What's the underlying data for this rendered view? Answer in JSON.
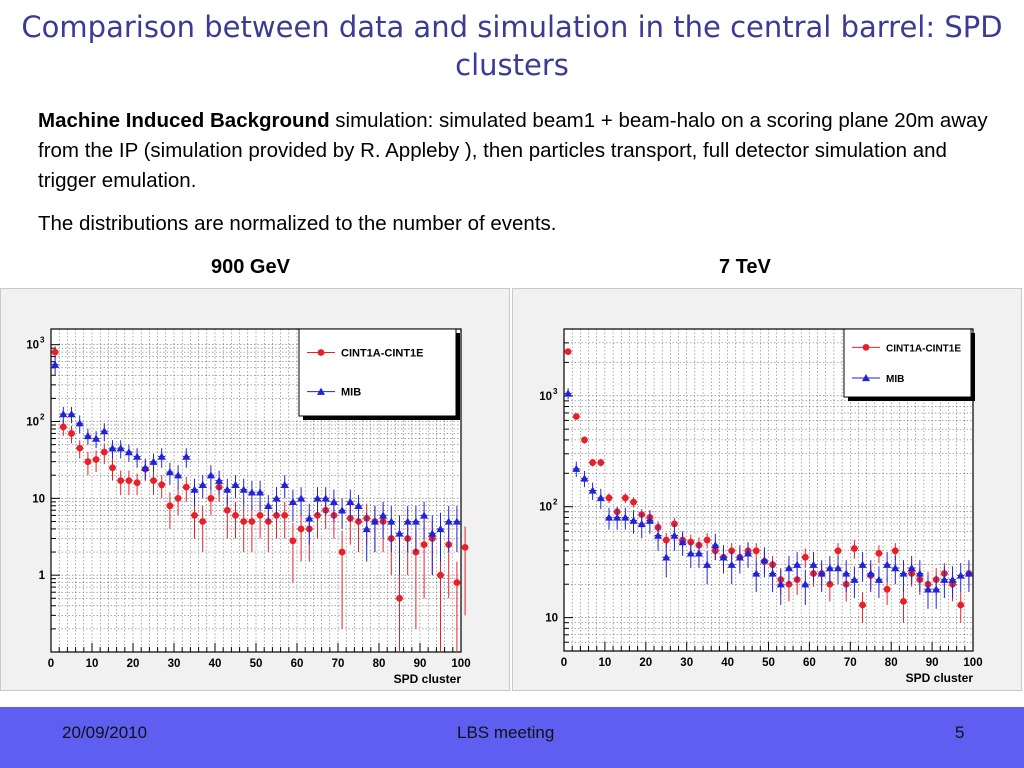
{
  "slide": {
    "title": "Comparison between data and simulation in the central barrel: SPD clusters",
    "para1_lead": "Machine Induced Background",
    "para1_rest": " simulation: simulated beam1 + beam-halo on a scoring plane 20m away from the IP (simulation provided by R. Appleby ), then particles transport, full detector simulation and trigger emulation.",
    "para2": "The distributions are normalized to the number of events."
  },
  "footer": {
    "date": "20/09/2010",
    "meeting": "LBS meeting",
    "page": "5"
  },
  "colors": {
    "data": "#e8202a",
    "mib": "#2222d6",
    "footer": "#5e5ef0",
    "title": "#3b3b96"
  },
  "chart_data": [
    {
      "type": "scatter",
      "panel_label": "900 GeV",
      "xlabel": "SPD cluster",
      "ylabel": "",
      "xlim": [
        0,
        100
      ],
      "ylim": [
        0.1,
        1600
      ],
      "yscale": "log",
      "xticks": [
        0,
        10,
        20,
        30,
        40,
        50,
        60,
        70,
        80,
        90,
        100
      ],
      "yticks": [
        {
          "v": 1,
          "label": "1"
        },
        {
          "v": 10,
          "label": "10"
        },
        {
          "v": 100,
          "label": "10",
          "sup": "2"
        },
        {
          "v": 1000,
          "label": "10",
          "sup": "3"
        }
      ],
      "grid": true,
      "legend_position": "top-right",
      "series": [
        {
          "name": "CINT1A-CINT1E",
          "marker": "circle",
          "points": [
            [
              1,
              800,
              150
            ],
            [
              3,
              85,
              20
            ],
            [
              5,
              70,
              18
            ],
            [
              7,
              45,
              12
            ],
            [
              9,
              30,
              10
            ],
            [
              11,
              32,
              10
            ],
            [
              13,
              40,
              12
            ],
            [
              15,
              25,
              8
            ],
            [
              17,
              17,
              6
            ],
            [
              19,
              17,
              6
            ],
            [
              21,
              16,
              5
            ],
            [
              23,
              24,
              7
            ],
            [
              25,
              17,
              6
            ],
            [
              27,
              15,
              5
            ],
            [
              29,
              8,
              4
            ],
            [
              31,
              10,
              4
            ],
            [
              33,
              14,
              5
            ],
            [
              35,
              6,
              3
            ],
            [
              37,
              5,
              3
            ],
            [
              39,
              10,
              4
            ],
            [
              41,
              14,
              5
            ],
            [
              43,
              7,
              4
            ],
            [
              45,
              6,
              3
            ],
            [
              47,
              5,
              3
            ],
            [
              49,
              5,
              3
            ],
            [
              51,
              6,
              3
            ],
            [
              53,
              5,
              3
            ],
            [
              55,
              6,
              3
            ],
            [
              57,
              6,
              3
            ],
            [
              59,
              2.8,
              2
            ],
            [
              61,
              4,
              2.5
            ],
            [
              63,
              4,
              2.5
            ],
            [
              65,
              6,
              3
            ],
            [
              67,
              7,
              3
            ],
            [
              69,
              6,
              3
            ],
            [
              71,
              2,
              1.8
            ],
            [
              73,
              5.5,
              3
            ],
            [
              75,
              5,
              3
            ],
            [
              77,
              5.5,
              3
            ],
            [
              79,
              5,
              3
            ],
            [
              81,
              5,
              3
            ],
            [
              83,
              3,
              2
            ],
            [
              85,
              0.5,
              0.5
            ],
            [
              87,
              3,
              2
            ],
            [
              89,
              2,
              1.8
            ],
            [
              91,
              2.5,
              2
            ],
            [
              93,
              3,
              2
            ],
            [
              95,
              1,
              1
            ],
            [
              97,
              2.5,
              2
            ],
            [
              99,
              0.8,
              0.7
            ],
            [
              101,
              2.3,
              2
            ]
          ]
        },
        {
          "name": "MIB",
          "marker": "triangle",
          "points": [
            [
              1,
              550,
              150
            ],
            [
              3,
              125,
              30
            ],
            [
              5,
              125,
              30
            ],
            [
              7,
              95,
              25
            ],
            [
              9,
              65,
              15
            ],
            [
              11,
              60,
              15
            ],
            [
              13,
              75,
              20
            ],
            [
              15,
              45,
              12
            ],
            [
              17,
              45,
              12
            ],
            [
              19,
              40,
              10
            ],
            [
              21,
              35,
              10
            ],
            [
              23,
              25,
              8
            ],
            [
              25,
              30,
              8
            ],
            [
              27,
              35,
              10
            ],
            [
              29,
              22,
              7
            ],
            [
              31,
              20,
              7
            ],
            [
              33,
              35,
              10
            ],
            [
              35,
              13,
              5
            ],
            [
              37,
              15,
              5
            ],
            [
              39,
              20,
              7
            ],
            [
              41,
              17,
              6
            ],
            [
              43,
              13,
              5
            ],
            [
              45,
              15,
              5
            ],
            [
              47,
              13,
              5
            ],
            [
              49,
              12,
              5
            ],
            [
              51,
              12,
              5
            ],
            [
              53,
              8,
              3
            ],
            [
              55,
              10,
              4
            ],
            [
              57,
              15,
              5
            ],
            [
              59,
              9,
              4
            ],
            [
              61,
              10,
              4
            ],
            [
              63,
              5.5,
              3
            ],
            [
              65,
              10,
              4
            ],
            [
              67,
              10,
              4
            ],
            [
              69,
              9,
              4
            ],
            [
              71,
              7,
              3
            ],
            [
              73,
              9,
              4
            ],
            [
              75,
              8,
              3
            ],
            [
              77,
              4,
              2.5
            ],
            [
              79,
              5,
              3
            ],
            [
              81,
              6,
              3
            ],
            [
              83,
              5,
              3
            ],
            [
              85,
              3.5,
              2.5
            ],
            [
              87,
              5,
              3
            ],
            [
              89,
              5,
              3
            ],
            [
              91,
              6,
              3
            ],
            [
              93,
              3.5,
              2.5
            ],
            [
              95,
              4,
              2.5
            ],
            [
              97,
              5,
              3
            ],
            [
              99,
              5,
              3
            ]
          ]
        }
      ]
    },
    {
      "type": "scatter",
      "panel_label": "7 TeV",
      "xlabel": "SPD cluster",
      "ylabel": "",
      "xlim": [
        0,
        100
      ],
      "ylim": [
        5,
        4000
      ],
      "yscale": "log",
      "xticks": [
        0,
        10,
        20,
        30,
        40,
        50,
        60,
        70,
        80,
        90,
        100
      ],
      "yticks": [
        {
          "v": 10,
          "label": "10"
        },
        {
          "v": 100,
          "label": "10",
          "sup": "2"
        },
        {
          "v": 1000,
          "label": "10",
          "sup": "3"
        }
      ],
      "grid": true,
      "legend_position": "top-right",
      "series": [
        {
          "name": "CINT1A-CINT1E",
          "marker": "circle",
          "points": [
            [
              1,
              2500,
              100
            ],
            [
              3,
              650,
              40
            ],
            [
              5,
              400,
              30
            ],
            [
              7,
              250,
              20
            ],
            [
              9,
              250,
              20
            ],
            [
              11,
              120,
              12
            ],
            [
              13,
              90,
              10
            ],
            [
              15,
              120,
              12
            ],
            [
              17,
              110,
              12
            ],
            [
              19,
              85,
              10
            ],
            [
              21,
              80,
              10
            ],
            [
              23,
              65,
              9
            ],
            [
              25,
              50,
              8
            ],
            [
              27,
              70,
              9
            ],
            [
              29,
              50,
              8
            ],
            [
              31,
              48,
              8
            ],
            [
              33,
              45,
              8
            ],
            [
              35,
              50,
              8
            ],
            [
              37,
              40,
              7
            ],
            [
              39,
              35,
              7
            ],
            [
              41,
              40,
              7
            ],
            [
              43,
              35,
              7
            ],
            [
              45,
              40,
              7
            ],
            [
              47,
              40,
              7
            ],
            [
              49,
              32,
              7
            ],
            [
              51,
              30,
              6
            ],
            [
              53,
              22,
              6
            ],
            [
              55,
              20,
              6
            ],
            [
              57,
              22,
              6
            ],
            [
              59,
              35,
              7
            ],
            [
              61,
              25,
              6
            ],
            [
              63,
              25,
              6
            ],
            [
              65,
              20,
              6
            ],
            [
              67,
              40,
              7
            ],
            [
              69,
              20,
              6
            ],
            [
              71,
              42,
              8
            ],
            [
              73,
              13,
              4
            ],
            [
              75,
              24,
              6
            ],
            [
              77,
              38,
              7
            ],
            [
              79,
              18,
              5
            ],
            [
              81,
              40,
              7
            ],
            [
              83,
              14,
              5
            ],
            [
              85,
              25,
              6
            ],
            [
              87,
              22,
              6
            ],
            [
              89,
              20,
              6
            ],
            [
              91,
              22,
              6
            ],
            [
              93,
              25,
              6
            ],
            [
              95,
              20,
              6
            ],
            [
              97,
              13,
              4
            ],
            [
              99,
              25,
              6
            ]
          ]
        },
        {
          "name": "MIB",
          "marker": "triangle",
          "points": [
            [
              1,
              1050,
              120
            ],
            [
              3,
              220,
              35
            ],
            [
              5,
              180,
              30
            ],
            [
              7,
              140,
              25
            ],
            [
              9,
              120,
              25
            ],
            [
              11,
              80,
              18
            ],
            [
              13,
              80,
              18
            ],
            [
              15,
              80,
              18
            ],
            [
              17,
              75,
              18
            ],
            [
              19,
              70,
              18
            ],
            [
              21,
              75,
              18
            ],
            [
              23,
              55,
              15
            ],
            [
              25,
              35,
              12
            ],
            [
              27,
              55,
              15
            ],
            [
              29,
              48,
              12
            ],
            [
              31,
              38,
              10
            ],
            [
              33,
              38,
              10
            ],
            [
              35,
              30,
              10
            ],
            [
              37,
              45,
              12
            ],
            [
              39,
              35,
              10
            ],
            [
              41,
              30,
              10
            ],
            [
              43,
              35,
              10
            ],
            [
              45,
              38,
              10
            ],
            [
              47,
              25,
              8
            ],
            [
              49,
              33,
              10
            ],
            [
              51,
              25,
              8
            ],
            [
              53,
              20,
              7
            ],
            [
              55,
              28,
              8
            ],
            [
              57,
              30,
              9
            ],
            [
              59,
              20,
              7
            ],
            [
              61,
              30,
              9
            ],
            [
              63,
              25,
              8
            ],
            [
              65,
              28,
              8
            ],
            [
              67,
              28,
              8
            ],
            [
              69,
              25,
              8
            ],
            [
              71,
              22,
              7
            ],
            [
              73,
              30,
              9
            ],
            [
              75,
              25,
              8
            ],
            [
              77,
              22,
              7
            ],
            [
              79,
              30,
              9
            ],
            [
              81,
              28,
              8
            ],
            [
              83,
              25,
              8
            ],
            [
              85,
              28,
              8
            ],
            [
              87,
              25,
              8
            ],
            [
              89,
              18,
              6
            ],
            [
              91,
              18,
              6
            ],
            [
              93,
              22,
              7
            ],
            [
              95,
              22,
              7
            ],
            [
              97,
              24,
              7
            ],
            [
              99,
              25,
              8
            ]
          ]
        }
      ]
    }
  ]
}
